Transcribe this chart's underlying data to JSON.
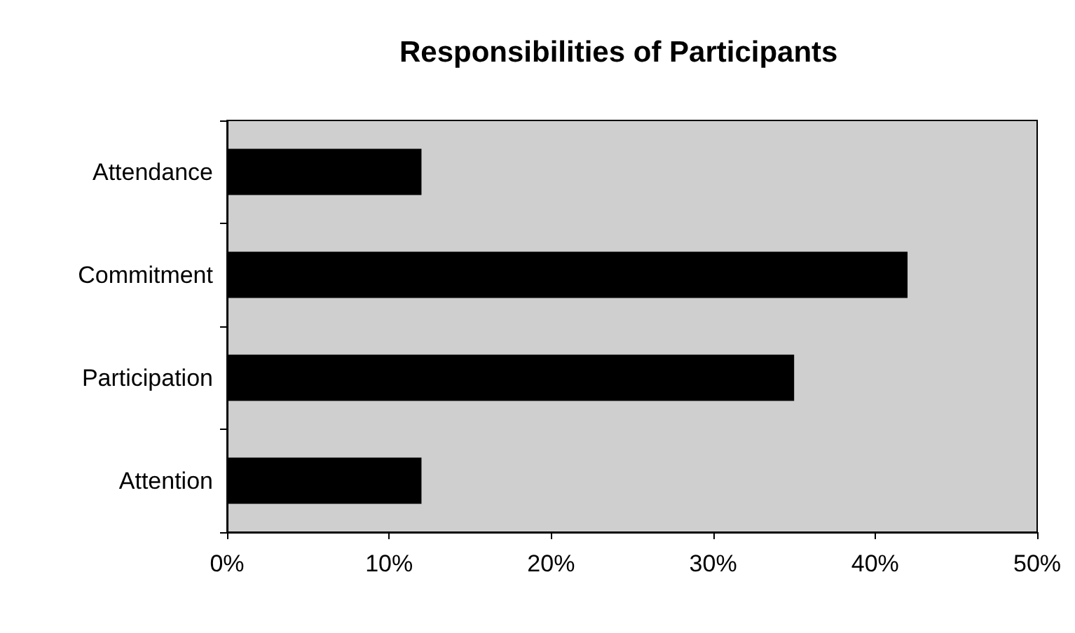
{
  "chart_data": {
    "type": "bar",
    "orientation": "horizontal",
    "title": "Responsibilities of Participants",
    "categories": [
      "Attendance",
      "Commitment",
      "Participation",
      "Attention"
    ],
    "values": [
      12,
      42,
      35,
      12
    ],
    "color": "#000000",
    "xlim": [
      0,
      50
    ],
    "xticks": [
      {
        "value": 0,
        "label": "0%"
      },
      {
        "value": 10,
        "label": "10%"
      },
      {
        "value": 20,
        "label": "20%"
      },
      {
        "value": 30,
        "label": "30%"
      },
      {
        "value": 40,
        "label": "40%"
      },
      {
        "value": 50,
        "label": "50%"
      }
    ],
    "grid": false
  }
}
